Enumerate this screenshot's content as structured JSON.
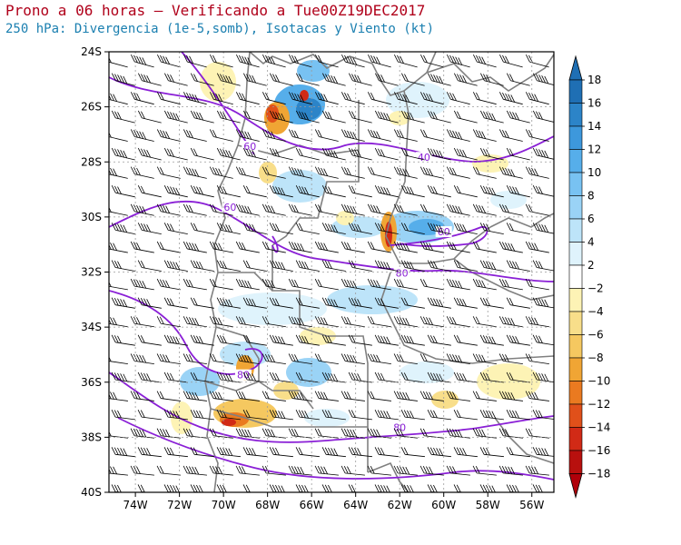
{
  "title": "Prono a 06 horas – Verificando a Tue00Z19DEC2017",
  "subtitle": "250 hPa: Divergencia (1e-5,somb), Isotacas y Viento (kt)",
  "colors": {
    "title": "#b0001a",
    "subtitle": "#1a7fb0",
    "isotach": "#8a1fd6",
    "border": "#808080",
    "grid": "#9a9a9a"
  },
  "map": {
    "lon_labels": [
      "74W",
      "72W",
      "70W",
      "68W",
      "66W",
      "64W",
      "62W",
      "60W",
      "58W",
      "56W"
    ],
    "lat_labels": [
      "24S",
      "26S",
      "28S",
      "30S",
      "32S",
      "34S",
      "36S",
      "38S",
      "40S"
    ],
    "lon_range": [
      -75.2,
      -55.0
    ],
    "lat_range": [
      -40,
      -24
    ],
    "isotach_labels": [
      {
        "text": "60",
        "lon": -68.8,
        "lat": -27.5
      },
      {
        "text": "60",
        "lon": -69.7,
        "lat": -29.7
      },
      {
        "text": "40",
        "lon": -60.9,
        "lat": -27.9
      },
      {
        "text": "60",
        "lon": -60.0,
        "lat": -30.6
      },
      {
        "text": "80",
        "lon": -61.9,
        "lat": -32.1
      },
      {
        "text": "80",
        "lon": -69.1,
        "lat": -35.8
      },
      {
        "text": "80",
        "lon": -62.0,
        "lat": -37.7
      }
    ]
  },
  "colorbar": {
    "levels": [
      "18",
      "16",
      "14",
      "12",
      "10",
      "8",
      "6",
      "4",
      "2",
      "−2",
      "−4",
      "−6",
      "−8",
      "−10",
      "−12",
      "−14",
      "−16",
      "−18"
    ],
    "colors": [
      "#1f6fb4",
      "#2c84c8",
      "#3d98dc",
      "#56aeea",
      "#78c2f2",
      "#9ad3f6",
      "#bde4f9",
      "#dff3fc",
      "#ffffff",
      "#fdf3b5",
      "#f8de8a",
      "#f5c860",
      "#f0a534",
      "#ea7a20",
      "#e0501a",
      "#d12a16",
      "#b8100e"
    ]
  }
}
